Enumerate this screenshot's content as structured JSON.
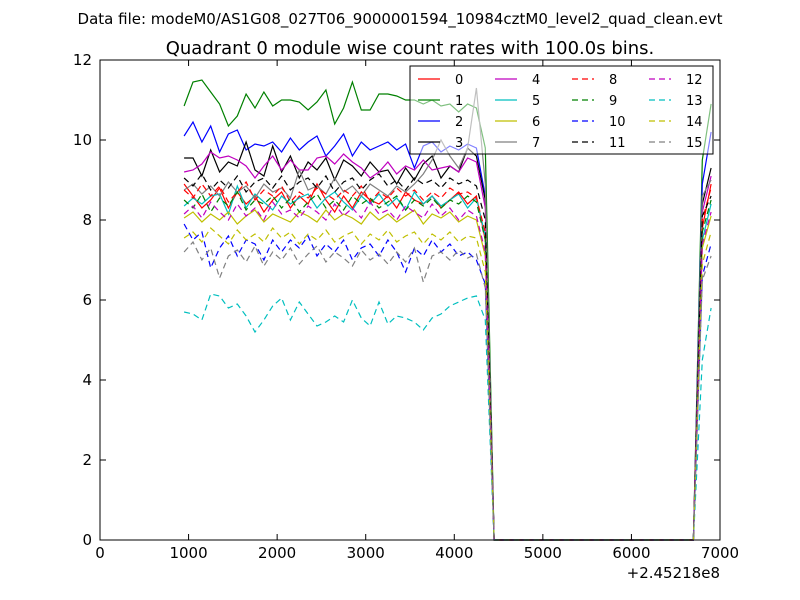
{
  "header": {
    "data_file": "Data file: modeM0/AS1G08_027T06_9000001594_10984cztM0_level2_quad_clean.evt"
  },
  "chart_data": {
    "type": "line",
    "title": "Quadrant 0 module wise count rates with 100.0s bins.",
    "xlabel": "",
    "ylabel": "",
    "x_offset_label": "+2.45218e8",
    "xlim": [
      0,
      7000
    ],
    "ylim": [
      0,
      12
    ],
    "xticks": [
      0,
      1000,
      2000,
      3000,
      4000,
      5000,
      6000,
      7000
    ],
    "yticks": [
      0,
      2,
      4,
      6,
      8,
      10,
      12
    ],
    "grid": false,
    "legend": {
      "placement": "top-right",
      "columns": 4
    },
    "x": [
      950,
      1050,
      1150,
      1250,
      1350,
      1450,
      1550,
      1650,
      1750,
      1850,
      1950,
      2050,
      2150,
      2250,
      2350,
      2450,
      2550,
      2650,
      2750,
      2850,
      2950,
      3050,
      3150,
      3250,
      3350,
      3450,
      3550,
      3650,
      3750,
      3850,
      3950,
      4050,
      4150,
      4250,
      4350,
      4450,
      6700,
      6800,
      6900
    ],
    "series": [
      {
        "name": "0",
        "color": "#ff0000",
        "dash": "solid",
        "values": [
          8.9,
          8.6,
          8.3,
          8.5,
          8.8,
          8.3,
          8.7,
          8.4,
          8.6,
          8.2,
          8.5,
          8.7,
          8.3,
          8.6,
          8.4,
          8.9,
          8.5,
          8.2,
          8.6,
          8.3,
          8.7,
          8.5,
          8.4,
          8.6,
          8.3,
          8.7,
          8.5,
          8.4,
          8.6,
          8.3,
          8.5,
          8.7,
          8.4,
          8.6,
          7.5,
          0,
          0,
          7.8,
          8.9
        ]
      },
      {
        "name": "1",
        "color": "#008000",
        "dash": "solid",
        "values": [
          10.85,
          11.45,
          11.5,
          11.2,
          10.9,
          10.35,
          10.6,
          11.15,
          10.8,
          11.2,
          10.85,
          11.0,
          11.0,
          10.95,
          10.75,
          10.95,
          11.25,
          10.4,
          10.8,
          11.45,
          10.75,
          10.75,
          11.15,
          11.15,
          11.1,
          11.0,
          11.0,
          10.9,
          11.0,
          10.85,
          10.9,
          10.7,
          10.9,
          10.8,
          9.8,
          0,
          0,
          9.5,
          10.9
        ]
      },
      {
        "name": "2",
        "color": "#0000ff",
        "dash": "solid",
        "values": [
          10.1,
          10.45,
          9.95,
          10.35,
          9.7,
          10.15,
          10.25,
          9.75,
          9.9,
          9.85,
          9.95,
          9.7,
          10.05,
          9.75,
          9.95,
          10.1,
          9.6,
          9.85,
          10.15,
          9.6,
          9.95,
          9.75,
          9.85,
          9.95,
          9.75,
          9.9,
          9.3,
          9.85,
          9.95,
          9.7,
          9.85,
          9.75,
          9.9,
          9.8,
          8.6,
          0,
          0,
          8.9,
          10.2
        ]
      },
      {
        "name": "3",
        "color": "#000000",
        "dash": "solid",
        "values": [
          9.55,
          9.55,
          9.1,
          9.75,
          9.2,
          9.45,
          9.35,
          9.95,
          9.25,
          9.1,
          9.85,
          9.2,
          9.6,
          9.05,
          9.45,
          9.25,
          9.55,
          9.0,
          9.5,
          9.35,
          9.1,
          9.45,
          9.2,
          9.25,
          8.9,
          9.3,
          9.0,
          9.4,
          9.6,
          9.05,
          9.35,
          9.2,
          9.8,
          9.6,
          8.5,
          0,
          0,
          8.4,
          9.3
        ]
      },
      {
        "name": "4",
        "color": "#bf00bf",
        "dash": "solid",
        "values": [
          9.2,
          9.25,
          9.4,
          9.7,
          9.55,
          9.6,
          9.5,
          9.35,
          9.05,
          9.35,
          9.6,
          9.25,
          9.5,
          9.25,
          9.25,
          9.55,
          9.6,
          9.4,
          9.65,
          9.45,
          9.3,
          9.05,
          9.2,
          9.45,
          9.15,
          9.35,
          9.25,
          9.5,
          9.25,
          9.3,
          9.35,
          9.2,
          9.55,
          9.45,
          8.3,
          0,
          0,
          8.2,
          9.1
        ]
      },
      {
        "name": "5",
        "color": "#00bfbf",
        "dash": "solid",
        "values": [
          8.35,
          8.55,
          8.4,
          8.6,
          8.65,
          8.15,
          8.85,
          8.3,
          8.65,
          8.45,
          8.25,
          8.6,
          8.4,
          8.55,
          8.65,
          8.3,
          8.55,
          8.7,
          8.45,
          8.25,
          8.6,
          8.4,
          8.65,
          8.35,
          8.55,
          8.25,
          8.7,
          8.4,
          8.6,
          8.35,
          8.5,
          8.65,
          8.3,
          8.55,
          7.6,
          0,
          0,
          7.5,
          8.4
        ]
      },
      {
        "name": "6",
        "color": "#bfbf00",
        "dash": "solid",
        "values": [
          8.05,
          8.2,
          7.95,
          8.15,
          8.0,
          8.2,
          7.9,
          8.1,
          8.25,
          7.95,
          8.15,
          8.05,
          7.95,
          8.2,
          8.1,
          7.95,
          8.25,
          8.0,
          8.15,
          8.05,
          7.9,
          8.2,
          8.0,
          8.15,
          7.95,
          8.1,
          8.25,
          7.9,
          8.15,
          8.05,
          8.2,
          7.95,
          8.1,
          8.0,
          7.1,
          0,
          0,
          7.3,
          8.1
        ]
      },
      {
        "name": "7",
        "color": "#808080",
        "dash": "solid",
        "values": [
          8.75,
          8.9,
          8.65,
          8.85,
          8.6,
          8.95,
          8.7,
          8.85,
          8.55,
          8.9,
          8.7,
          8.8,
          8.55,
          9.25,
          8.75,
          8.85,
          8.65,
          9.05,
          8.7,
          8.85,
          8.6,
          8.9,
          8.75,
          8.6,
          8.85,
          8.7,
          8.9,
          9.15,
          9.5,
          10.0,
          9.6,
          9.3,
          9.8,
          11.3,
          8.9,
          0,
          0,
          8.6,
          9.0
        ]
      },
      {
        "name": "8",
        "color": "#ff0000",
        "dash": "dashed",
        "values": [
          8.75,
          8.55,
          8.9,
          8.6,
          8.85,
          8.45,
          8.7,
          8.95,
          8.5,
          8.75,
          8.6,
          8.85,
          8.45,
          8.7,
          8.55,
          8.8,
          8.65,
          8.5,
          8.75,
          8.6,
          8.85,
          8.45,
          8.7,
          8.55,
          8.8,
          8.6,
          8.75,
          8.5,
          8.7,
          8.55,
          8.8,
          8.65,
          8.7,
          8.55,
          7.7,
          0,
          0,
          8.0,
          8.8
        ]
      },
      {
        "name": "9",
        "color": "#008000",
        "dash": "dashed",
        "values": [
          8.5,
          8.3,
          8.65,
          8.2,
          8.55,
          8.35,
          8.7,
          8.25,
          8.5,
          8.4,
          8.6,
          8.3,
          8.55,
          8.2,
          8.45,
          8.65,
          8.3,
          8.5,
          8.25,
          8.6,
          8.4,
          8.55,
          8.3,
          8.45,
          8.6,
          8.25,
          8.5,
          8.35,
          8.55,
          8.3,
          8.5,
          8.4,
          8.6,
          8.45,
          7.5,
          0,
          0,
          7.7,
          8.5
        ]
      },
      {
        "name": "10",
        "color": "#0000ff",
        "dash": "dashed",
        "values": [
          7.9,
          7.5,
          7.7,
          6.8,
          7.3,
          7.6,
          7.1,
          7.5,
          7.4,
          7.0,
          7.5,
          7.2,
          7.5,
          7.3,
          7.6,
          7.1,
          7.4,
          7.2,
          7.5,
          7.0,
          7.3,
          7.4,
          7.1,
          7.5,
          7.2,
          6.7,
          7.3,
          7.1,
          7.5,
          7.2,
          7.4,
          7.1,
          7.2,
          7.0,
          6.4,
          0,
          0,
          6.6,
          7.4
        ]
      },
      {
        "name": "11",
        "color": "#000000",
        "dash": "dashed",
        "values": [
          9.05,
          8.85,
          9.15,
          8.75,
          9.0,
          8.8,
          9.1,
          8.7,
          8.95,
          9.05,
          8.8,
          9.1,
          8.75,
          8.95,
          9.05,
          8.8,
          9.1,
          8.7,
          8.95,
          9.05,
          8.75,
          9.0,
          9.15,
          8.85,
          9.0,
          8.75,
          9.05,
          8.9,
          9.0,
          8.8,
          9.05,
          8.9,
          9.0,
          8.85,
          8.0,
          0,
          0,
          8.1,
          8.6
        ]
      },
      {
        "name": "12",
        "color": "#bf00bf",
        "dash": "dashed",
        "values": [
          8.15,
          8.35,
          8.05,
          8.45,
          8.2,
          8.0,
          8.4,
          8.1,
          8.3,
          8.0,
          8.45,
          8.15,
          8.25,
          8.05,
          8.35,
          8.2,
          8.0,
          8.4,
          8.1,
          8.3,
          8.05,
          8.45,
          8.15,
          8.25,
          8.0,
          8.35,
          8.2,
          8.05,
          8.4,
          8.1,
          8.3,
          8.0,
          8.25,
          8.1,
          7.2,
          0,
          0,
          7.4,
          8.2
        ]
      },
      {
        "name": "13",
        "color": "#00bfbf",
        "dash": "dashed",
        "values": [
          5.7,
          5.65,
          5.5,
          6.15,
          6.1,
          5.8,
          5.9,
          5.6,
          5.2,
          5.5,
          5.85,
          6.05,
          5.5,
          5.95,
          5.65,
          5.35,
          5.45,
          5.6,
          5.45,
          6.0,
          5.55,
          5.35,
          5.95,
          5.4,
          5.6,
          5.55,
          5.45,
          5.25,
          5.55,
          5.65,
          5.85,
          5.95,
          6.05,
          6.1,
          5.5,
          0,
          0,
          4.5,
          5.8
        ]
      },
      {
        "name": "14",
        "color": "#bfbf00",
        "dash": "dashed",
        "values": [
          7.55,
          7.7,
          7.45,
          7.8,
          7.6,
          7.4,
          7.75,
          7.5,
          7.65,
          7.45,
          7.8,
          7.55,
          7.7,
          7.4,
          7.65,
          7.5,
          7.75,
          7.45,
          7.6,
          7.7,
          7.4,
          7.65,
          7.5,
          7.75,
          7.45,
          7.6,
          7.7,
          7.4,
          7.65,
          7.5,
          7.7,
          7.45,
          7.6,
          7.55,
          6.7,
          0,
          0,
          6.9,
          7.7
        ]
      },
      {
        "name": "15",
        "color": "#808080",
        "dash": "dashed",
        "values": [
          7.2,
          7.45,
          7.0,
          7.3,
          6.55,
          7.1,
          7.25,
          6.95,
          7.35,
          6.85,
          7.2,
          7.0,
          7.3,
          6.9,
          7.15,
          7.35,
          6.95,
          7.2,
          7.05,
          6.85,
          7.25,
          7.0,
          7.15,
          6.9,
          7.2,
          6.95,
          7.3,
          6.45,
          7.1,
          7.2,
          7.0,
          7.25,
          7.05,
          7.15,
          6.3,
          0,
          0,
          6.5,
          7.1
        ]
      }
    ]
  }
}
